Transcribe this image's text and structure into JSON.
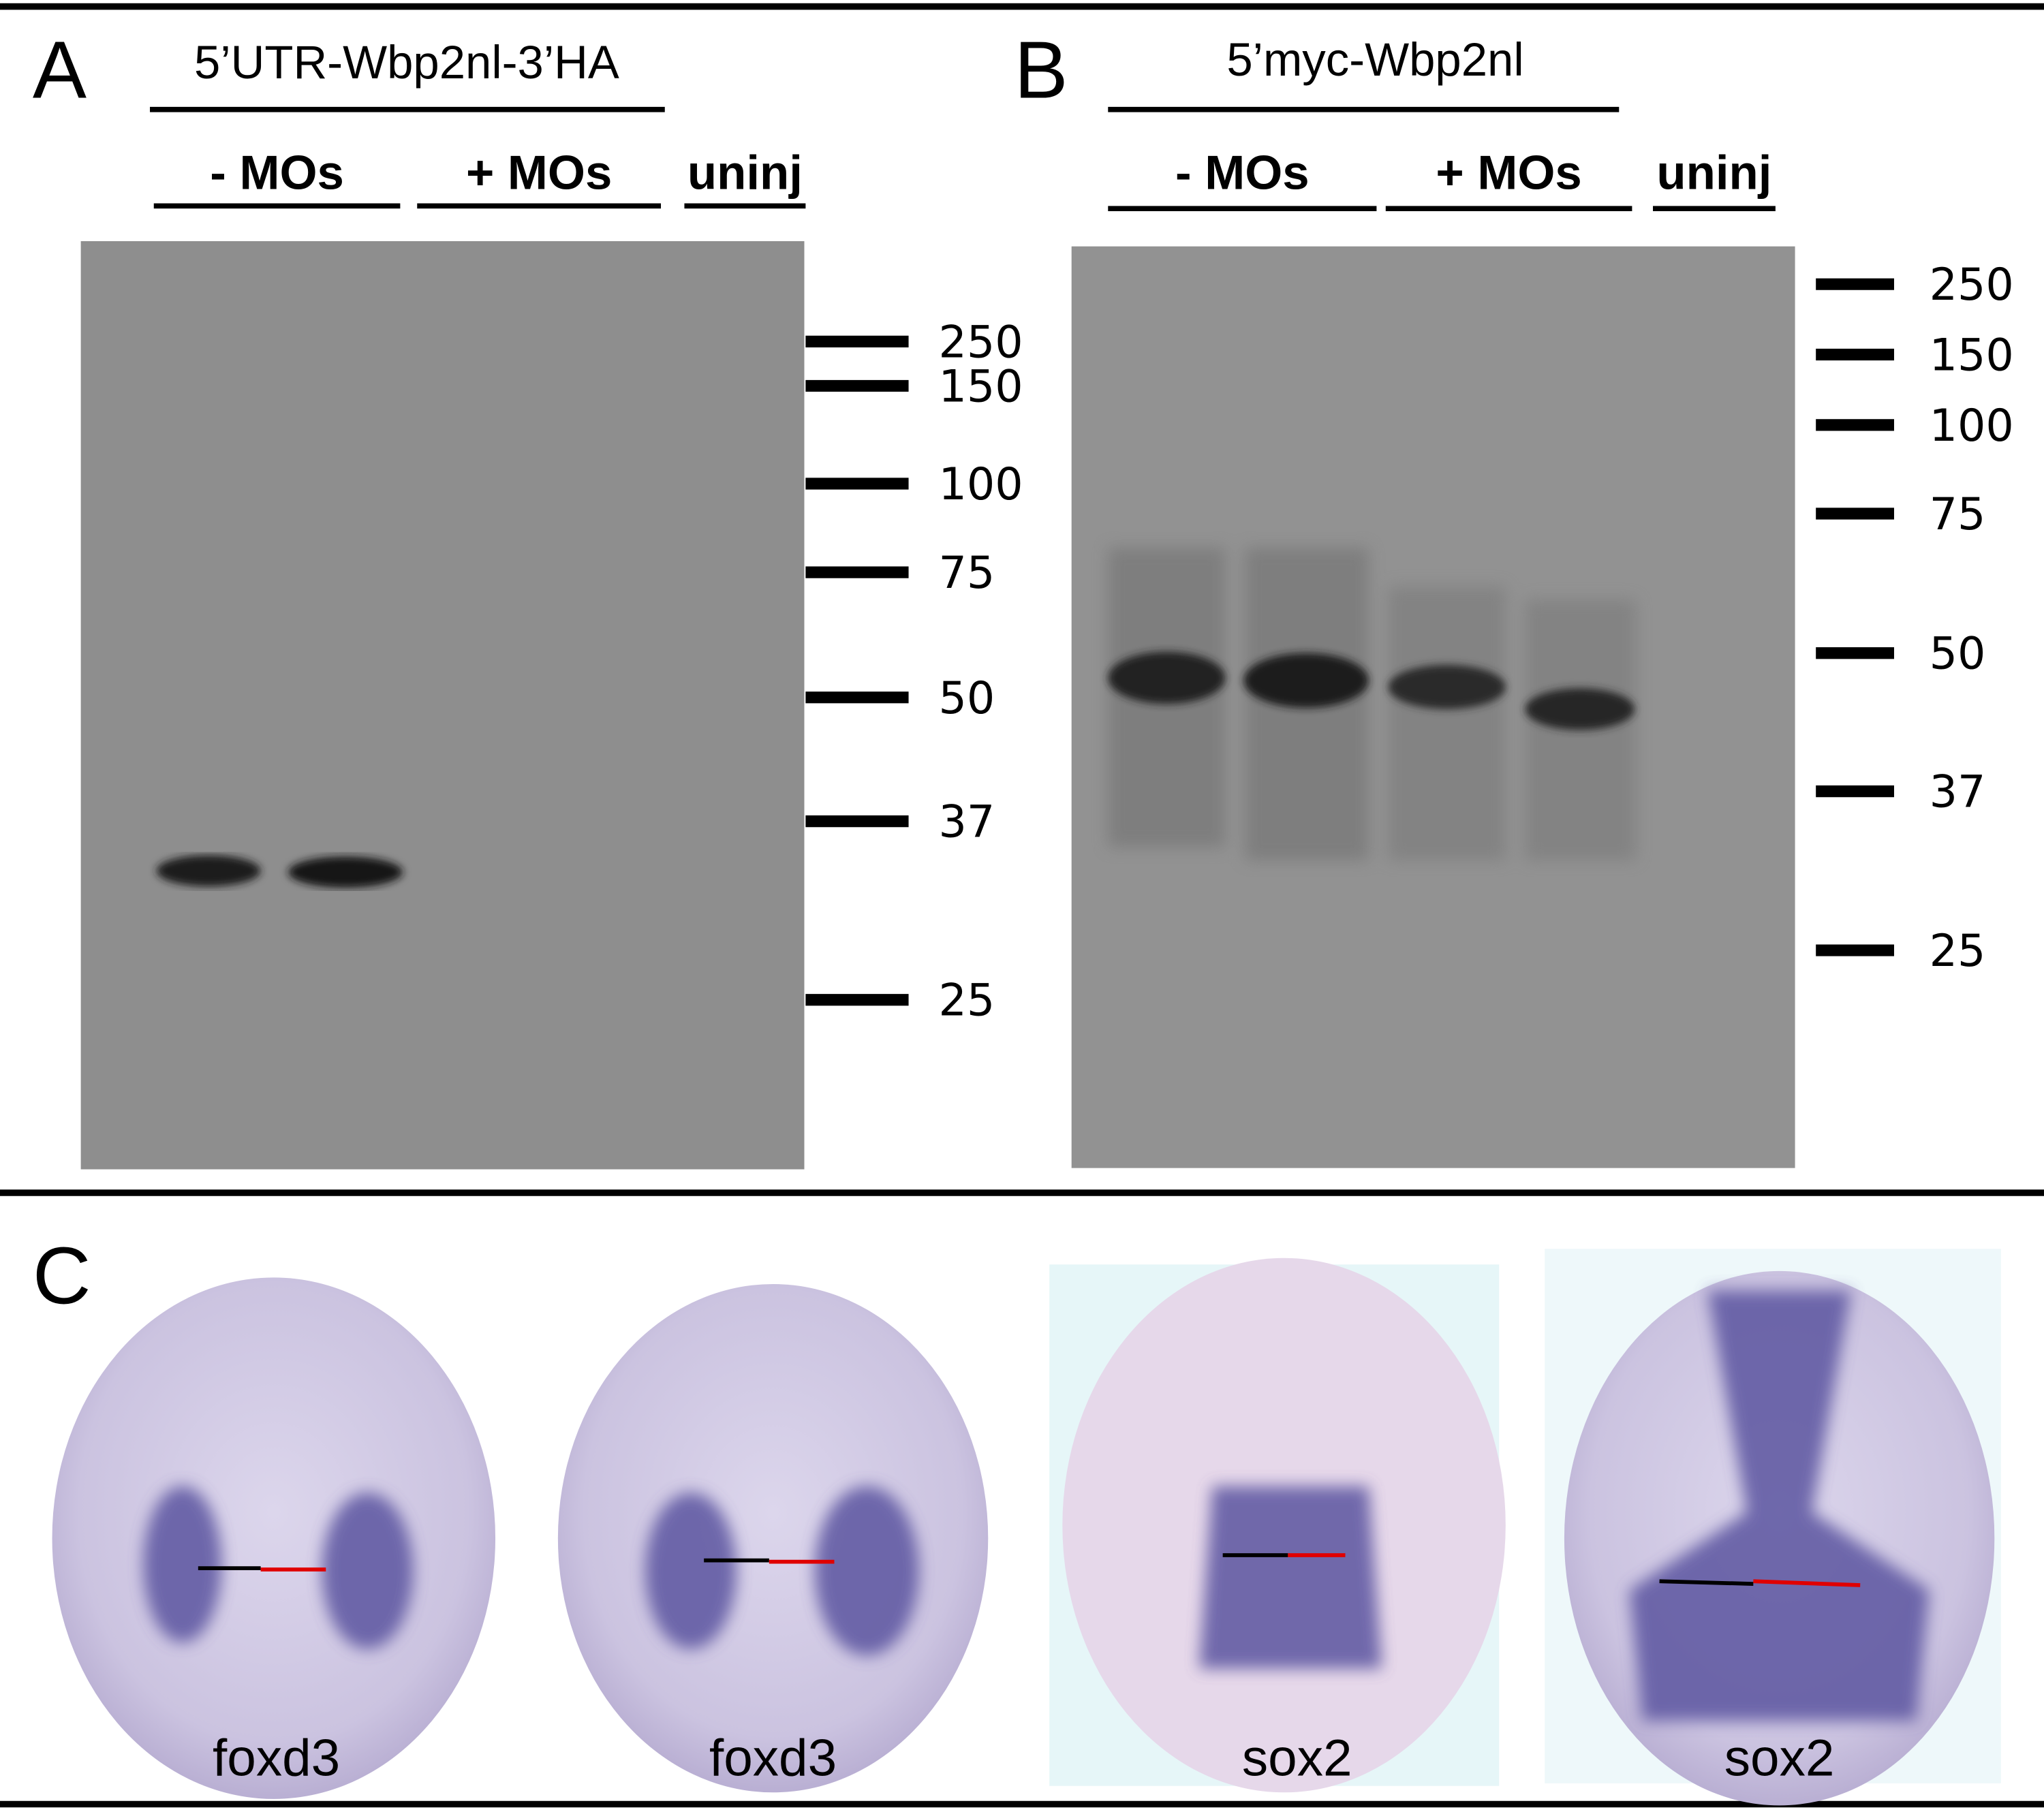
{
  "panel_a": {
    "letter": "A",
    "title": "5’UTR-Wbp2nl-3’HA",
    "lanes": [
      "- MOs",
      "+ MOs",
      "uninj"
    ],
    "markers": [
      250,
      150,
      100,
      75,
      50,
      37,
      25
    ]
  },
  "panel_b": {
    "letter": "B",
    "title": "5’myc-Wbp2nl",
    "lanes": [
      "- MOs",
      "+ MOs",
      "uninj"
    ],
    "markers": [
      250,
      150,
      100,
      75,
      50,
      37,
      25
    ]
  },
  "panel_c": {
    "letter": "C",
    "captions": [
      "foxd3",
      "foxd3",
      "sox2",
      "sox2"
    ]
  }
}
